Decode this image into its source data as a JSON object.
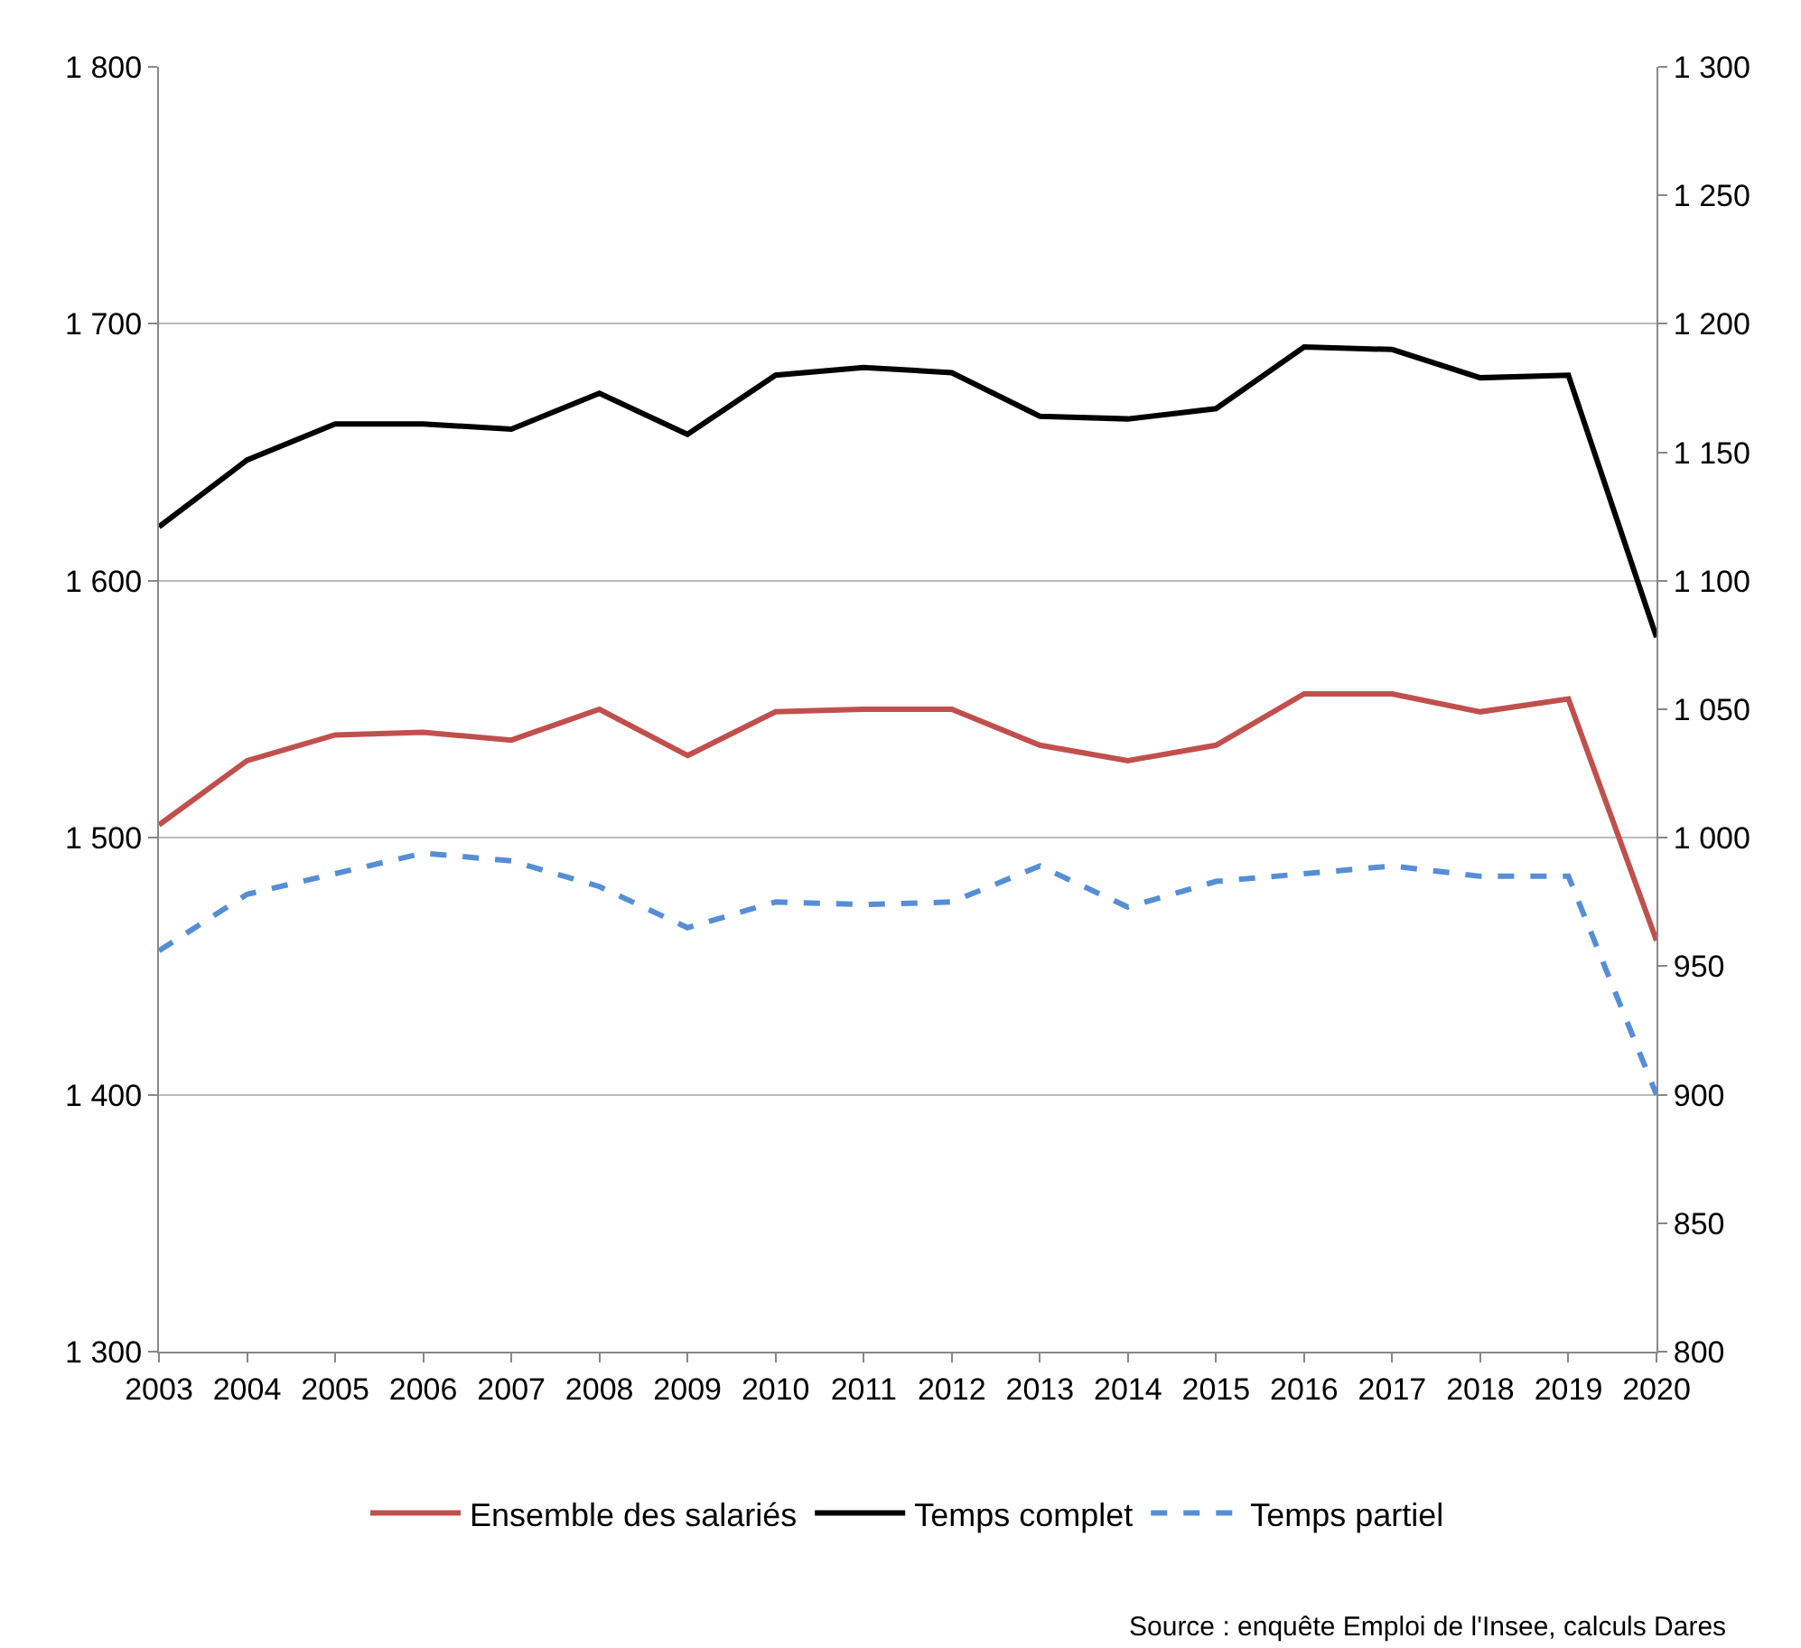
{
  "chart_data": {
    "type": "line",
    "categories": [
      "2003",
      "2004",
      "2005",
      "2006",
      "2007",
      "2008",
      "2009",
      "2010",
      "2011",
      "2012",
      "2013",
      "2014",
      "2015",
      "2016",
      "2017",
      "2018",
      "2019",
      "2020"
    ],
    "series": [
      {
        "name": "Ensemble des salariés",
        "color": "#c0504d",
        "values": [
          1505,
          1530,
          1540,
          1541,
          1538,
          1550,
          1532,
          1549,
          1550,
          1550,
          1536,
          1530,
          1536,
          1556,
          1556,
          1549,
          1554,
          1460
        ]
      },
      {
        "name": "Temps complet",
        "color": "#000000",
        "values": [
          1621,
          1647,
          1661,
          1661,
          1659,
          1673,
          1657,
          1680,
          1683,
          1681,
          1664,
          1663,
          1667,
          1691,
          1690,
          1679,
          1680,
          1578
        ]
      },
      {
        "name": "Temps partiel",
        "color": "#558ed5",
        "axis": "y2",
        "line_style": "dashed",
        "values": [
          956,
          978,
          986,
          994,
          991,
          981,
          965,
          975,
          974,
          975,
          989,
          973,
          983,
          986,
          989,
          985,
          985,
          900
        ]
      }
    ],
    "ylim": [
      1300,
      1800
    ],
    "yticks": [
      {
        "value": 1300,
        "label": "1 300"
      },
      {
        "value": 1400,
        "label": "1 400"
      },
      {
        "value": 1500,
        "label": "1 500"
      },
      {
        "value": 1600,
        "label": "1 600"
      },
      {
        "value": 1700,
        "label": "1 700"
      },
      {
        "value": 1800,
        "label": "1 800"
      }
    ],
    "y2lim": [
      800,
      1300
    ],
    "y2ticks": [
      800,
      850,
      900,
      950,
      {
        "value": 1000,
        "label": "1 000"
      },
      {
        "value": 1050,
        "label": "1 050"
      },
      {
        "value": 1100,
        "label": "1 100"
      },
      {
        "value": 1150,
        "label": "1 150"
      },
      {
        "value": 1200,
        "label": "1 200"
      },
      {
        "value": 1250,
        "label": "1 250"
      },
      {
        "value": 1300,
        "label": "1 300"
      }
    ],
    "grid": "y",
    "legend": "bottom",
    "line_style": "solid",
    "marker": "none",
    "annotations": [
      "Source : enquête Emploi de l'Insee, calculs Dares"
    ]
  }
}
